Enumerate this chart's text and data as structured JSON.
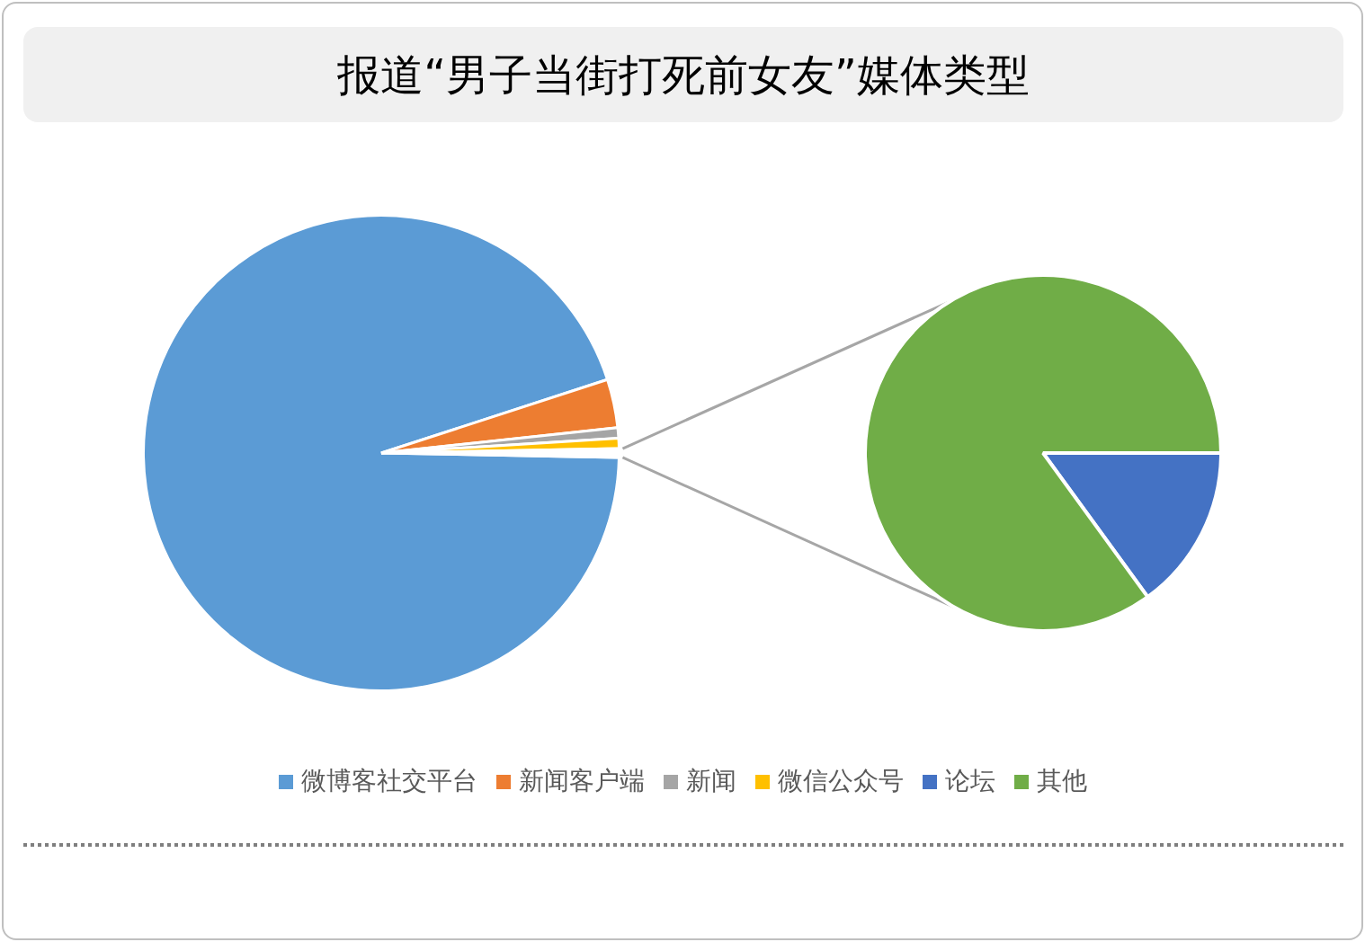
{
  "chart_data": [
    {
      "type": "pie",
      "title": "报道“男子当街打死前女友”媒体类型",
      "categories": [
        "微博客社交平台",
        "新闻客户端",
        "新闻",
        "微信公众号",
        null
      ],
      "values": [
        94.7,
        3.3,
        0.7,
        0.7,
        0.6
      ],
      "colors": [
        "#5b9bd5",
        "#ed7d31",
        "#a5a5a5",
        "#ffc000",
        "#ffffff"
      ],
      "legend": "bottom"
    },
    {
      "type": "pie",
      "categories": [
        "论坛",
        "其他"
      ],
      "values": [
        15,
        85
      ],
      "colors": [
        "#4472c4",
        "#70ad47"
      ],
      "legend": "bottom"
    }
  ]
}
